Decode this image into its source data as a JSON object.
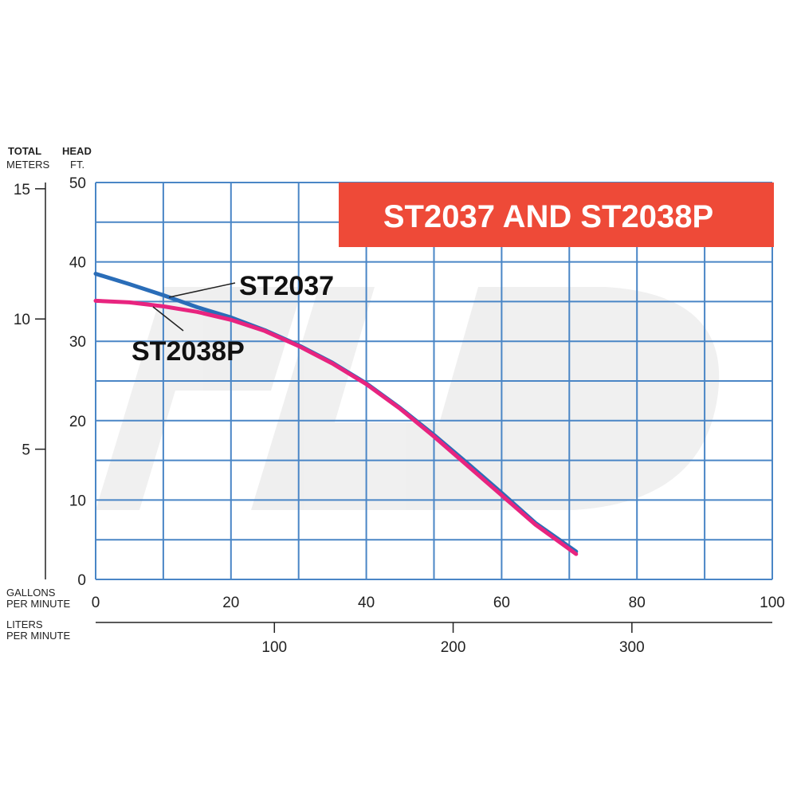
{
  "chart_data": {
    "type": "line",
    "title": "ST2037 AND ST2038P",
    "title_bg_color": "#ee4a38",
    "left_axis_header": {
      "line1": "TOTAL",
      "line2": "METERS"
    },
    "right_axis_header": {
      "line1": "HEAD",
      "line2": "FT."
    },
    "x_label_top": {
      "line1": "GALLONS",
      "line2": "PER MINUTE"
    },
    "x_label_bottom": {
      "line1": "LITERS",
      "line2": "PER MINUTE"
    },
    "xlim": [
      0,
      100
    ],
    "ylim": [
      0,
      50
    ],
    "y_ticks_ft": [
      "0",
      "10",
      "20",
      "30",
      "40",
      "50"
    ],
    "y_ticks_m": [
      "5",
      "10",
      "15"
    ],
    "x_ticks_gpm": [
      "0",
      "20",
      "40",
      "60",
      "80",
      "100"
    ],
    "x_ticks_lpm": [
      "100",
      "200",
      "300"
    ],
    "grid": true,
    "grid_color": "#4a86c6",
    "series": [
      {
        "name": "ST2037",
        "color": "#2a6db8",
        "x": [
          0,
          5,
          10,
          15,
          20,
          25,
          30,
          35,
          40,
          45,
          50,
          55,
          60,
          65,
          71
        ],
        "y": [
          38.5,
          37.2,
          35.8,
          34.3,
          33.0,
          31.4,
          29.5,
          27.3,
          24.7,
          21.6,
          18.2,
          14.6,
          10.9,
          7.1,
          3.5
        ]
      },
      {
        "name": "ST2038P",
        "color": "#e8247f",
        "x": [
          0,
          5,
          10,
          15,
          20,
          25,
          30,
          35,
          40,
          45,
          50,
          55,
          60,
          65,
          71
        ],
        "y": [
          35.1,
          34.9,
          34.4,
          33.7,
          32.7,
          31.3,
          29.4,
          27.2,
          24.6,
          21.5,
          18.0,
          14.3,
          10.6,
          6.9,
          3.2
        ]
      }
    ]
  }
}
